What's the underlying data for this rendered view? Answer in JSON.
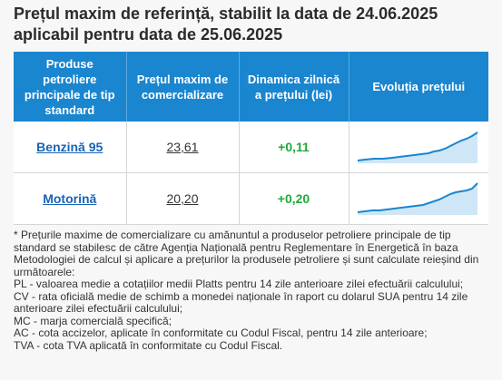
{
  "title": "Prețul maxim de referință, stabilit la data de 24.06.2025 aplicabil pentru data de 25.06.2025",
  "table": {
    "headers": [
      "Produse petroliere principale de tip standard",
      "Prețul maxim de comercializare",
      "Dinamica zilnică a prețului (lei)",
      "Evoluția prețului"
    ],
    "rows": [
      {
        "product": "Benzină 95",
        "price": "23,61",
        "change": "+0,11",
        "trend": "rising"
      },
      {
        "product": "Motorină",
        "price": "20,20",
        "change": "+0,20",
        "trend": "rising"
      }
    ]
  },
  "footnote": {
    "intro": "* Prețurile maxime de comercializare cu amănuntul a produselor petroliere principale de tip standard se stabilesc de către Agenția Națională pentru Reglementare în Energetică în baza Metodologiei de calcul și aplicare a prețurilor la produsele petroliere și sunt calculate reieșind din următoarele:",
    "pl": "PL - valoarea medie a cotațiilor medii Platts pentru 14 zile anterioare zilei efectuării calculului;",
    "cv": "CV - rata oficială medie de schimb a monedei naționale în raport cu dolarul SUA pentru 14 zile anterioare zilei efectuării calculului;",
    "mc": "MC - marja comercială specifică;",
    "ac": "AC - cota accizelor, aplicate în conformitate cu Codul Fiscal, pentru 14 zile anterioare;",
    "tva": "TVA - cota TVA aplicată în conformitate cu Codul Fiscal."
  },
  "colors": {
    "header_bg": "#1a86cf",
    "link": "#1a63b5",
    "positive": "#1faa3a",
    "spark_line": "#1a86cf",
    "spark_fill": "#cfe6f7"
  }
}
